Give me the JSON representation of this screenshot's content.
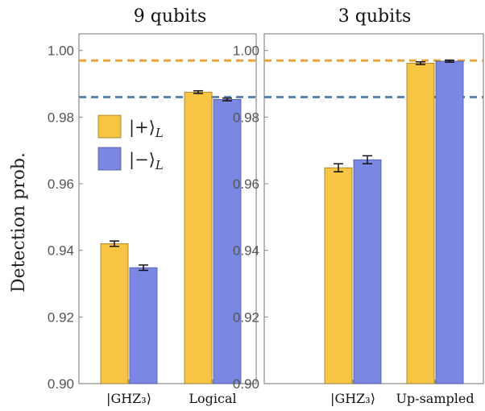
{
  "colors": {
    "plus": "#F7C444",
    "plus_edge": "#9a7a22",
    "minus": "#7B88E3",
    "minus_edge": "#4b55a3",
    "ref_orange": "#E5A33A",
    "ref_blue": "#5B86B5",
    "errbar": "#111111"
  },
  "chart_data": [
    {
      "type": "bar",
      "title": "9 qubits",
      "ylabel": "Detection prob.",
      "ylim": [
        0.9,
        1.005
      ],
      "yticks": [
        "0.90",
        "0.92",
        "0.94",
        "0.96",
        "0.98",
        "1.00"
      ],
      "ytick_values": [
        0.9,
        0.92,
        0.94,
        0.96,
        0.98,
        1.0
      ],
      "categories": [
        "|GHZ₃⟩",
        "Logical"
      ],
      "series": [
        {
          "name": "|+⟩_L",
          "values": [
            0.942,
            0.9875
          ],
          "errors": [
            0.0008,
            0.0004
          ]
        },
        {
          "name": "|−⟩_L",
          "values": [
            0.9348,
            0.9853
          ],
          "errors": [
            0.0008,
            0.0004
          ]
        }
      ],
      "reference_lines": [
        {
          "value": 0.997,
          "color": "orange"
        },
        {
          "value": 0.986,
          "color": "blue"
        }
      ],
      "legend": {
        "placement": "left",
        "entries": [
          {
            "prefix": "|+⟩",
            "sub": "L"
          },
          {
            "prefix": "|−⟩",
            "sub": "L"
          }
        ]
      }
    },
    {
      "type": "bar",
      "title": "3 qubits",
      "ylim": [
        0.9,
        1.005
      ],
      "yticks": [
        "0.90",
        "0.92",
        "0.94",
        "0.96",
        "0.98",
        "1.00"
      ],
      "ytick_values": [
        0.9,
        0.92,
        0.94,
        0.96,
        0.98,
        1.0
      ],
      "categories": [
        "|GHZ₃⟩",
        "Up-sampled"
      ],
      "series": [
        {
          "name": "|+⟩_L",
          "values": [
            0.9648,
            0.9962
          ],
          "errors": [
            0.0012,
            0.0004
          ]
        },
        {
          "name": "|−⟩_L",
          "values": [
            0.9672,
            0.9968
          ],
          "errors": [
            0.0012,
            0.0003
          ]
        }
      ],
      "reference_lines": [
        {
          "value": 0.997,
          "color": "orange"
        },
        {
          "value": 0.986,
          "color": "blue"
        }
      ]
    }
  ]
}
